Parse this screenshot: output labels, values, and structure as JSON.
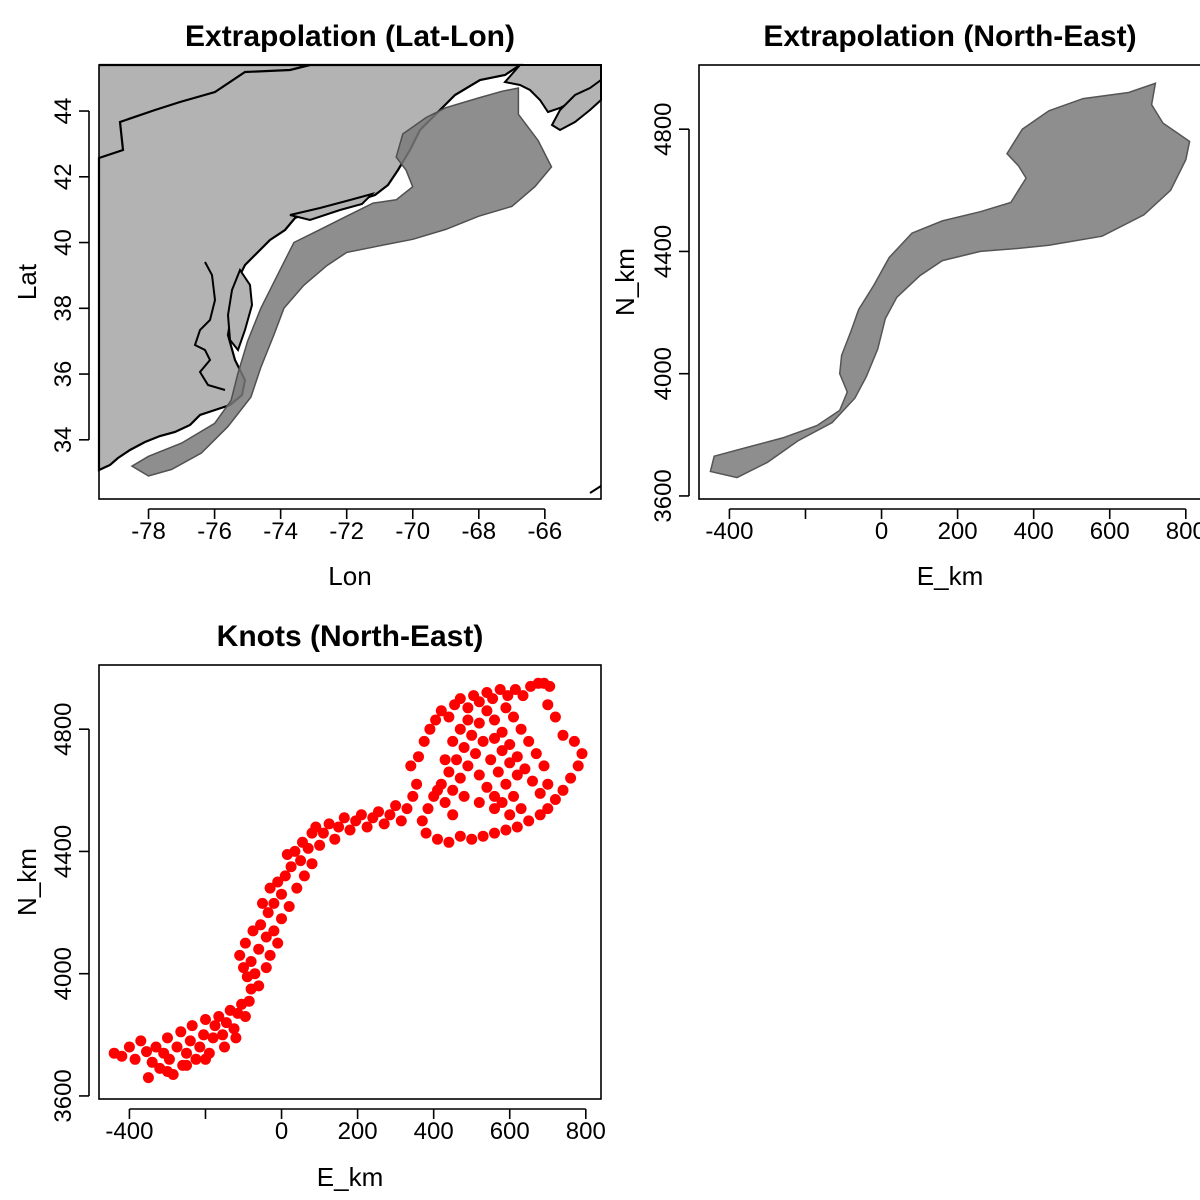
{
  "colors": {
    "land": "#b3b3b3",
    "coast": "#000000",
    "survey_fill": "#7a7a7a",
    "knots": "#ff0000",
    "background": "#ffffff"
  },
  "chart_data": [
    {
      "type": "map",
      "title": "Extrapolation (Lat-Lon)",
      "xlabel": "Lon",
      "ylabel": "Lat",
      "xlim": [
        -79.5,
        -64.3
      ],
      "ylim": [
        32.2,
        45.4
      ],
      "xticks": [
        -78,
        -76,
        -74,
        -72,
        -70,
        -68,
        -66
      ],
      "yticks": [
        34,
        36,
        38,
        40,
        42,
        44
      ],
      "xtick_labels": [
        "-78",
        "-76",
        "-74",
        "-72",
        "-70",
        "-68",
        "-66"
      ],
      "ytick_labels": [
        "34",
        "36",
        "38",
        "40",
        "42",
        "44"
      ],
      "survey_region_outline": [
        [
          -78.0,
          33.5
        ],
        [
          -77.0,
          33.9
        ],
        [
          -76.0,
          34.5
        ],
        [
          -75.5,
          35.2
        ],
        [
          -75.3,
          36.0
        ],
        [
          -75.0,
          37.0
        ],
        [
          -74.6,
          38.0
        ],
        [
          -74.1,
          39.0
        ],
        [
          -73.6,
          40.0
        ],
        [
          -72.8,
          40.4
        ],
        [
          -72.0,
          40.8
        ],
        [
          -71.2,
          41.2
        ],
        [
          -70.5,
          41.3
        ],
        [
          -70.0,
          41.7
        ],
        [
          -70.2,
          42.2
        ],
        [
          -70.5,
          42.6
        ],
        [
          -70.3,
          43.3
        ],
        [
          -69.6,
          43.8
        ],
        [
          -69.0,
          44.1
        ],
        [
          -68.0,
          44.4
        ],
        [
          -67.3,
          44.6
        ],
        [
          -66.8,
          44.7
        ],
        [
          -66.8,
          43.9
        ],
        [
          -66.2,
          43.1
        ],
        [
          -65.8,
          42.3
        ],
        [
          -66.3,
          41.7
        ],
        [
          -67.0,
          41.1
        ],
        [
          -68.0,
          40.8
        ],
        [
          -69.0,
          40.4
        ],
        [
          -70.0,
          40.1
        ],
        [
          -71.0,
          39.9
        ],
        [
          -72.0,
          39.7
        ],
        [
          -72.6,
          39.3
        ],
        [
          -73.3,
          38.7
        ],
        [
          -73.9,
          38.0
        ],
        [
          -74.2,
          37.2
        ],
        [
          -74.6,
          36.2
        ],
        [
          -74.9,
          35.3
        ],
        [
          -75.6,
          34.4
        ],
        [
          -76.4,
          33.6
        ],
        [
          -77.3,
          33.1
        ],
        [
          -78.0,
          32.9
        ],
        [
          -78.5,
          33.2
        ]
      ]
    },
    {
      "type": "map",
      "title": "Extrapolation (North-East)",
      "xlabel": "E_km",
      "ylabel": "N_km",
      "xlim": [
        -480,
        840
      ],
      "ylim": [
        3590,
        5010
      ],
      "xticks": [
        -400,
        0,
        200,
        400,
        600,
        800
      ],
      "yticks": [
        3600,
        4000,
        4400,
        4800
      ],
      "xtick_labels": [
        "-400",
        "0",
        "200",
        "400",
        "600",
        "800"
      ],
      "ytick_labels": [
        "3600",
        "4000",
        "4400",
        "4800"
      ],
      "unlabeled_xticks": [
        -200
      ],
      "survey_region_outline": [
        [
          -440,
          3730
        ],
        [
          -350,
          3760
        ],
        [
          -260,
          3790
        ],
        [
          -170,
          3830
        ],
        [
          -110,
          3880
        ],
        [
          -90,
          3940
        ],
        [
          -110,
          4000
        ],
        [
          -105,
          4060
        ],
        [
          -80,
          4140
        ],
        [
          -60,
          4210
        ],
        [
          -20,
          4290
        ],
        [
          20,
          4380
        ],
        [
          80,
          4460
        ],
        [
          160,
          4500
        ],
        [
          260,
          4530
        ],
        [
          340,
          4560
        ],
        [
          380,
          4640
        ],
        [
          360,
          4680
        ],
        [
          330,
          4720
        ],
        [
          370,
          4800
        ],
        [
          440,
          4860
        ],
        [
          530,
          4900
        ],
        [
          650,
          4920
        ],
        [
          720,
          4950
        ],
        [
          710,
          4880
        ],
        [
          740,
          4820
        ],
        [
          810,
          4760
        ],
        [
          800,
          4700
        ],
        [
          760,
          4600
        ],
        [
          690,
          4520
        ],
        [
          580,
          4450
        ],
        [
          440,
          4420
        ],
        [
          360,
          4410
        ],
        [
          260,
          4400
        ],
        [
          160,
          4370
        ],
        [
          100,
          4320
        ],
        [
          40,
          4250
        ],
        [
          10,
          4180
        ],
        [
          -10,
          4080
        ],
        [
          -40,
          3990
        ],
        [
          -70,
          3920
        ],
        [
          -130,
          3840
        ],
        [
          -220,
          3780
        ],
        [
          -300,
          3710
        ],
        [
          -380,
          3660
        ],
        [
          -450,
          3680
        ]
      ]
    },
    {
      "type": "scatter",
      "title": "Knots (North-East)",
      "xlabel": "E_km",
      "ylabel": "N_km",
      "xlim": [
        -480,
        840
      ],
      "ylim": [
        3590,
        5010
      ],
      "xticks": [
        -400,
        0,
        200,
        400,
        600,
        800
      ],
      "yticks": [
        3600,
        4000,
        4400,
        4800
      ],
      "xtick_labels": [
        "-400",
        "0",
        "200",
        "400",
        "600",
        "800"
      ],
      "ytick_labels": [
        "3600",
        "4000",
        "4400",
        "4800"
      ],
      "unlabeled_xticks": [
        -200
      ],
      "marker_color": "#ff0000",
      "series": [
        {
          "points": [
            [
              -440,
              3740
            ],
            [
              -420,
              3730
            ],
            [
              -400,
              3760
            ],
            [
              -385,
              3720
            ],
            [
              -370,
              3780
            ],
            [
              -355,
              3745
            ],
            [
              -340,
              3710
            ],
            [
              -330,
              3760
            ],
            [
              -320,
              3690
            ],
            [
              -310,
              3740
            ],
            [
              -300,
              3790
            ],
            [
              -295,
              3720
            ],
            [
              -285,
              3670
            ],
            [
              -275,
              3760
            ],
            [
              -265,
              3810
            ],
            [
              -260,
              3700
            ],
            [
              -250,
              3740
            ],
            [
              -240,
              3780
            ],
            [
              -235,
              3830
            ],
            [
              -225,
              3720
            ],
            [
              -215,
              3760
            ],
            [
              -205,
              3800
            ],
            [
              -200,
              3850
            ],
            [
              -190,
              3740
            ],
            [
              -180,
              3790
            ],
            [
              -175,
              3830
            ],
            [
              -165,
              3860
            ],
            [
              -155,
              3800
            ],
            [
              -145,
              3840
            ],
            [
              -135,
              3880
            ],
            [
              -125,
              3820
            ],
            [
              -115,
              3870
            ],
            [
              -105,
              3900
            ],
            [
              -95,
              3860
            ],
            [
              -85,
              3910
            ],
            [
              -80,
              3950
            ],
            [
              -90,
              3990
            ],
            [
              -100,
              4020
            ],
            [
              -110,
              4060
            ],
            [
              -95,
              4100
            ],
            [
              -80,
              4040
            ],
            [
              -70,
              4000
            ],
            [
              -60,
              4080
            ],
            [
              -75,
              4140
            ],
            [
              -55,
              4160
            ],
            [
              -40,
              4120
            ],
            [
              -35,
              4200
            ],
            [
              -20,
              4230
            ],
            [
              -50,
              4230
            ],
            [
              -30,
              4280
            ],
            [
              -10,
              4300
            ],
            [
              0,
              4260
            ],
            [
              10,
              4320
            ],
            [
              25,
              4350
            ],
            [
              15,
              4390
            ],
            [
              35,
              4400
            ],
            [
              50,
              4370
            ],
            [
              55,
              4430
            ],
            [
              70,
              4410
            ],
            [
              80,
              4460
            ],
            [
              90,
              4480
            ],
            [
              100,
              4420
            ],
            [
              110,
              4460
            ],
            [
              125,
              4490
            ],
            [
              140,
              4440
            ],
            [
              150,
              4480
            ],
            [
              165,
              4510
            ],
            [
              180,
              4470
            ],
            [
              195,
              4500
            ],
            [
              210,
              4520
            ],
            [
              225,
              4480
            ],
            [
              240,
              4510
            ],
            [
              255,
              4530
            ],
            [
              270,
              4490
            ],
            [
              285,
              4520
            ],
            [
              300,
              4550
            ],
            [
              315,
              4500
            ],
            [
              330,
              4540
            ],
            [
              345,
              4580
            ],
            [
              355,
              4620
            ],
            [
              340,
              4680
            ],
            [
              360,
              4710
            ],
            [
              375,
              4760
            ],
            [
              390,
              4800
            ],
            [
              405,
              4830
            ],
            [
              420,
              4860
            ],
            [
              440,
              4840
            ],
            [
              455,
              4880
            ],
            [
              470,
              4900
            ],
            [
              490,
              4870
            ],
            [
              505,
              4910
            ],
            [
              520,
              4890
            ],
            [
              540,
              4920
            ],
            [
              555,
              4900
            ],
            [
              575,
              4930
            ],
            [
              595,
              4910
            ],
            [
              615,
              4930
            ],
            [
              635,
              4910
            ],
            [
              655,
              4940
            ],
            [
              675,
              4950
            ],
            [
              690,
              4950
            ],
            [
              705,
              4940
            ],
            [
              700,
              4880
            ],
            [
              720,
              4840
            ],
            [
              740,
              4780
            ],
            [
              770,
              4760
            ],
            [
              790,
              4720
            ],
            [
              780,
              4680
            ],
            [
              760,
              4640
            ],
            [
              740,
              4600
            ],
            [
              720,
              4570
            ],
            [
              700,
              4540
            ],
            [
              680,
              4520
            ],
            [
              650,
              4500
            ],
            [
              620,
              4480
            ],
            [
              590,
              4470
            ],
            [
              560,
              4460
            ],
            [
              530,
              4450
            ],
            [
              500,
              4440
            ],
            [
              470,
              4450
            ],
            [
              440,
              4430
            ],
            [
              410,
              4440
            ],
            [
              380,
              4460
            ],
            [
              370,
              4500
            ],
            [
              385,
              4540
            ],
            [
              400,
              4580
            ],
            [
              420,
              4620
            ],
            [
              440,
              4660
            ],
            [
              460,
              4700
            ],
            [
              480,
              4740
            ],
            [
              500,
              4780
            ],
            [
              520,
              4820
            ],
            [
              540,
              4860
            ],
            [
              560,
              4830
            ],
            [
              580,
              4790
            ],
            [
              600,
              4750
            ],
            [
              620,
              4710
            ],
            [
              640,
              4670
            ],
            [
              660,
              4630
            ],
            [
              680,
              4590
            ],
            [
              700,
              4620
            ],
            [
              690,
              4680
            ],
            [
              670,
              4720
            ],
            [
              650,
              4760
            ],
            [
              630,
              4800
            ],
            [
              610,
              4840
            ],
            [
              590,
              4870
            ],
            [
              450,
              4600
            ],
            [
              470,
              4640
            ],
            [
              490,
              4680
            ],
            [
              510,
              4720
            ],
            [
              530,
              4760
            ],
            [
              550,
              4700
            ],
            [
              570,
              4660
            ],
            [
              590,
              4620
            ],
            [
              610,
              4580
            ],
            [
              630,
              4540
            ],
            [
              600,
              4520
            ],
            [
              560,
              4540
            ],
            [
              520,
              4560
            ],
            [
              480,
              4580
            ],
            [
              450,
              4520
            ],
            [
              430,
              4560
            ],
            [
              410,
              4600
            ],
            [
              430,
              4700
            ],
            [
              450,
              4760
            ],
            [
              470,
              4800
            ],
            [
              490,
              4830
            ],
            [
              520,
              4650
            ],
            [
              540,
              4610
            ],
            [
              560,
              4580
            ],
            [
              580,
              4560
            ],
            [
              620,
              4650
            ],
            [
              600,
              4690
            ],
            [
              580,
              4730
            ],
            [
              560,
              4770
            ],
            [
              -350,
              3660
            ],
            [
              -300,
              3680
            ],
            [
              -250,
              3700
            ],
            [
              -200,
              3720
            ],
            [
              -150,
              3760
            ],
            [
              -120,
              3790
            ],
            [
              0,
              4180
            ],
            [
              -20,
              4140
            ],
            [
              -10,
              4100
            ],
            [
              -30,
              4060
            ],
            [
              -40,
              4020
            ],
            [
              -60,
              3960
            ],
            [
              20,
              4220
            ],
            [
              40,
              4280
            ],
            [
              60,
              4320
            ],
            [
              80,
              4360
            ]
          ]
        }
      ]
    }
  ]
}
